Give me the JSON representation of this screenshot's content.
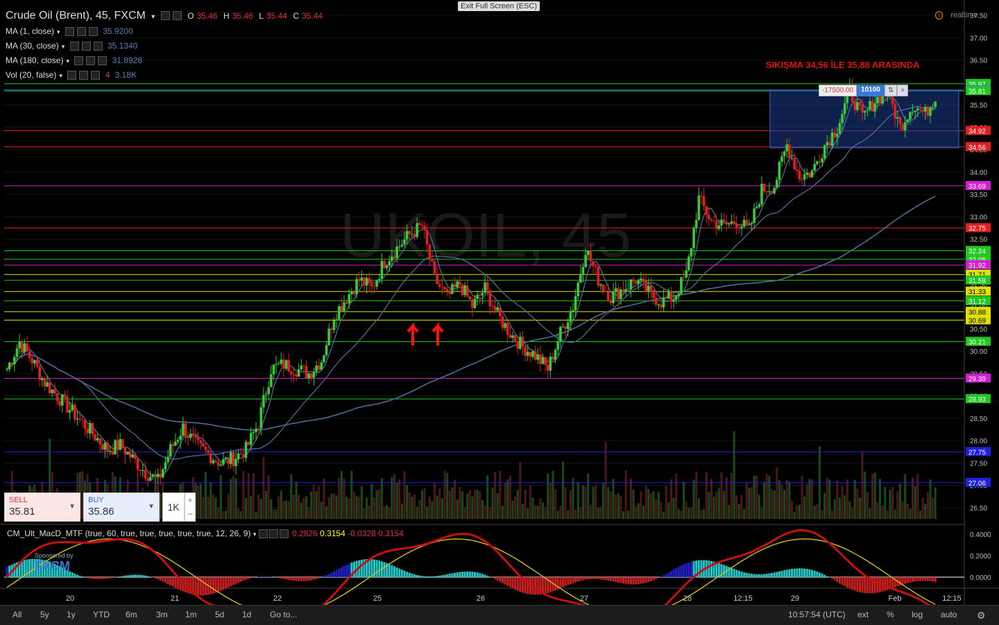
{
  "header": {
    "symbol": "Crude Oil (Brent), 45, FXCM",
    "o_lbl": "O",
    "o_val": "35.46",
    "h_lbl": "H",
    "h_val": "35.46",
    "l_lbl": "L",
    "l_val": "35.44",
    "c_lbl": "C",
    "c_val": "35.44"
  },
  "indicators": [
    {
      "label": "MA (1, close)",
      "value": "35.9200"
    },
    {
      "label": "MA (30, close)",
      "value": "35.1340"
    },
    {
      "label": "MA (180, close)",
      "value": "31.8928"
    },
    {
      "label": "Vol (20, false)",
      "value_red": "4",
      "value": "3.18K"
    }
  ],
  "exit_fullscreen": "Exit Full Screen (ESC)",
  "realtime_label": "realtime",
  "watermark": "UKOIL, 45",
  "annotation": "SIKIŞMA 34,56 İLE  35,88 ARASINDA",
  "position": {
    "pl": "-17500.00",
    "qty": "10100"
  },
  "trade": {
    "sell_label": "SELL",
    "sell_value": "35.81",
    "buy_label": "BUY",
    "buy_value": "35.86",
    "qty": "1K",
    "plus": "+",
    "minus": "−"
  },
  "macd_header": {
    "label": "CM_Ult_MacD_MTF (true, 60, true, true, true, true, true, 12, 26, 9)",
    "v1": "0.2826",
    "v2": "0.3154",
    "v3": "-0.0328",
    "v4": "0.3154"
  },
  "sponsor": {
    "text": "Sponsored by",
    "brand": "FXCM"
  },
  "bottom_bar": {
    "ranges": [
      "All",
      "5y",
      "1y",
      "YTD",
      "6m",
      "3m",
      "1m",
      "5d",
      "1d",
      "Go to..."
    ],
    "time": "10:57:54 (UTC)",
    "right": [
      "ext",
      "%",
      "log",
      "auto"
    ]
  },
  "chart_data": {
    "type": "candlestick",
    "title": "Crude Oil (Brent), 45, FXCM",
    "ylim": [
      26.2,
      37.6
    ],
    "y_ticks": [
      "37.50",
      "37.00",
      "36.50",
      "36.00",
      "35.50",
      "35.00",
      "34.50",
      "34.00",
      "33.50",
      "33.00",
      "32.50",
      "32.00",
      "31.50",
      "31.00",
      "30.50",
      "30.00",
      "29.50",
      "29.00",
      "28.50",
      "28.00",
      "27.50",
      "27.00",
      "26.50"
    ],
    "x_ticks": [
      "20",
      "21",
      "22",
      "25",
      "26",
      "27",
      "28",
      "12:15",
      "29",
      "Feb",
      "12:15"
    ],
    "price_path": [
      29.6,
      30.2,
      29.8,
      29.3,
      29.0,
      28.7,
      28.4,
      28.1,
      27.8,
      27.9,
      27.6,
      27.3,
      27.1,
      27.8,
      28.3,
      27.9,
      27.7,
      27.5,
      27.6,
      27.8,
      28.4,
      29.6,
      29.7,
      29.6,
      29.5,
      29.8,
      30.8,
      31.2,
      31.6,
      31.4,
      32.0,
      32.3,
      32.6,
      32.8,
      31.6,
      31.2,
      31.5,
      31.0,
      31.4,
      30.8,
      30.4,
      30.1,
      29.9,
      29.6,
      30.4,
      31.0,
      32.3,
      31.6,
      31.2,
      31.4,
      31.6,
      31.3,
      31.1,
      31.2,
      31.7,
      33.4,
      32.9,
      32.8,
      32.9,
      32.7,
      33.6,
      33.7,
      34.6,
      33.9,
      34.0,
      34.6,
      35.0,
      35.8,
      35.2,
      35.6,
      35.8,
      35.0,
      35.5,
      35.3,
      35.8
    ],
    "horizontal_levels": [
      {
        "price": "35.97",
        "color": "#22c822"
      },
      {
        "price": "35.83",
        "color": "#2a7de0"
      },
      {
        "price": "35.81",
        "color": "#22c822"
      },
      {
        "price": "32.05",
        "color": "#22c822"
      },
      {
        "price": "34.92",
        "color": "#e02020"
      },
      {
        "price": "34.56",
        "color": "#e02020"
      },
      {
        "price": "33.69",
        "color": "#d020d0"
      },
      {
        "price": "32.75",
        "color": "#e02020"
      },
      {
        "price": "32.24",
        "color": "#22c822"
      },
      {
        "price": "31.92",
        "color": "#d020d0"
      },
      {
        "price": "31.71",
        "color": "#e0e000"
      },
      {
        "price": "31.58",
        "color": "#22c822"
      },
      {
        "price": "31.33",
        "color": "#e0e000"
      },
      {
        "price": "31.12",
        "color": "#22c822"
      },
      {
        "price": "30.88",
        "color": "#e0e000"
      },
      {
        "price": "30.69",
        "color": "#e0e000"
      },
      {
        "price": "30.21",
        "color": "#22c822"
      },
      {
        "price": "29.39",
        "color": "#d020d0"
      },
      {
        "price": "28.93",
        "color": "#22c822"
      },
      {
        "price": "27.75",
        "color": "#2020e0"
      },
      {
        "price": "27.06",
        "color": "#2020e0"
      }
    ],
    "macd_ticks": [
      "0.4000",
      "0.2000",
      "0.0000"
    ],
    "colors": {
      "up": "#3cc83c",
      "down": "#e02020",
      "ma": "#4a6e96"
    }
  }
}
